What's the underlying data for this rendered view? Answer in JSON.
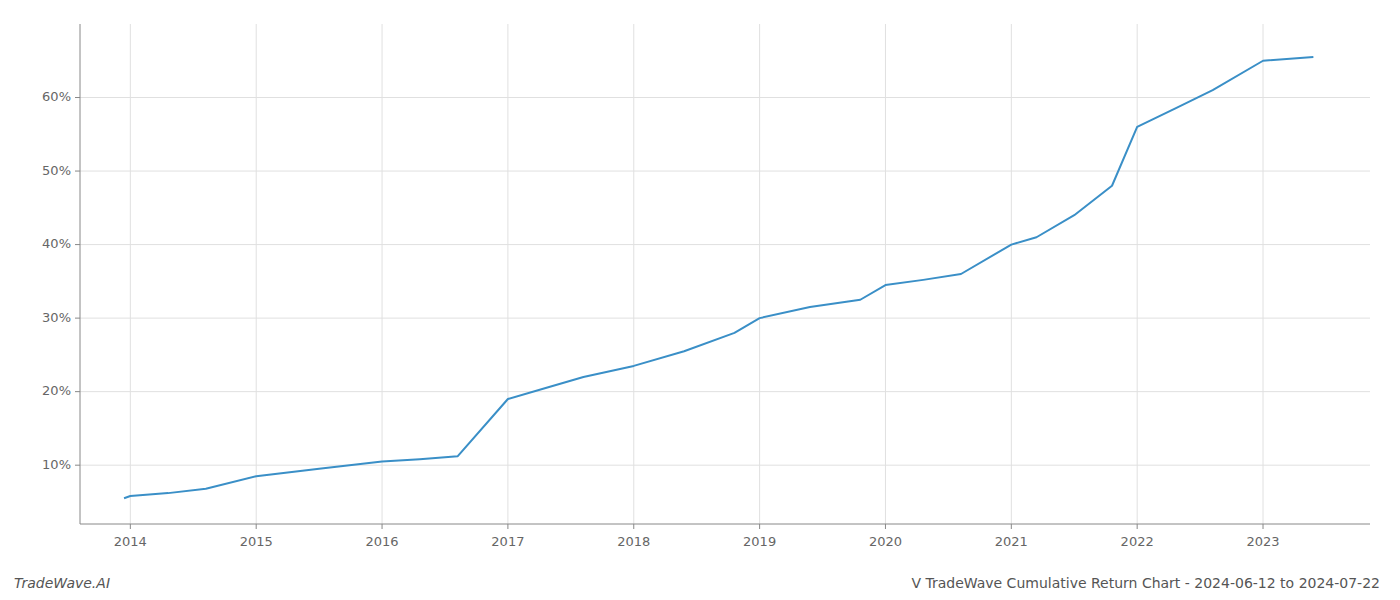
{
  "chart_data": {
    "type": "line",
    "title": "V TradeWave Cumulative Return Chart - 2024-06-12 to 2024-07-22",
    "annotations": [
      "TradeWave.AI"
    ],
    "x": [
      2013.95,
      2014.0,
      2014.3,
      2014.6,
      2015.0,
      2015.5,
      2016.0,
      2016.3,
      2016.6,
      2017.0,
      2017.3,
      2017.6,
      2018.0,
      2018.4,
      2018.8,
      2019.0,
      2019.4,
      2019.8,
      2020.0,
      2020.3,
      2020.6,
      2021.0,
      2021.2,
      2021.5,
      2021.8,
      2022.0,
      2022.3,
      2022.6,
      2023.0,
      2023.4
    ],
    "values": [
      5.5,
      5.8,
      6.2,
      6.8,
      8.5,
      9.5,
      10.5,
      10.8,
      11.2,
      19.0,
      20.5,
      22.0,
      23.5,
      25.5,
      28.0,
      30.0,
      31.5,
      32.5,
      34.5,
      35.2,
      36.0,
      40.0,
      41.0,
      44.0,
      48.0,
      56.0,
      58.5,
      61.0,
      65.0,
      65.5
    ],
    "color": "#3a8fc7",
    "xlim": [
      2013.6,
      2023.85
    ],
    "ylim": [
      2,
      70
    ],
    "xticks": [
      2014,
      2015,
      2016,
      2017,
      2018,
      2019,
      2020,
      2021,
      2022,
      2023
    ],
    "yticks": [
      {
        "value": 10,
        "label": "10%"
      },
      {
        "value": 20,
        "label": "20%"
      },
      {
        "value": 30,
        "label": "30%"
      },
      {
        "value": 40,
        "label": "40%"
      },
      {
        "value": 50,
        "label": "50%"
      },
      {
        "value": 60,
        "label": "60%"
      }
    ],
    "grid": true
  }
}
